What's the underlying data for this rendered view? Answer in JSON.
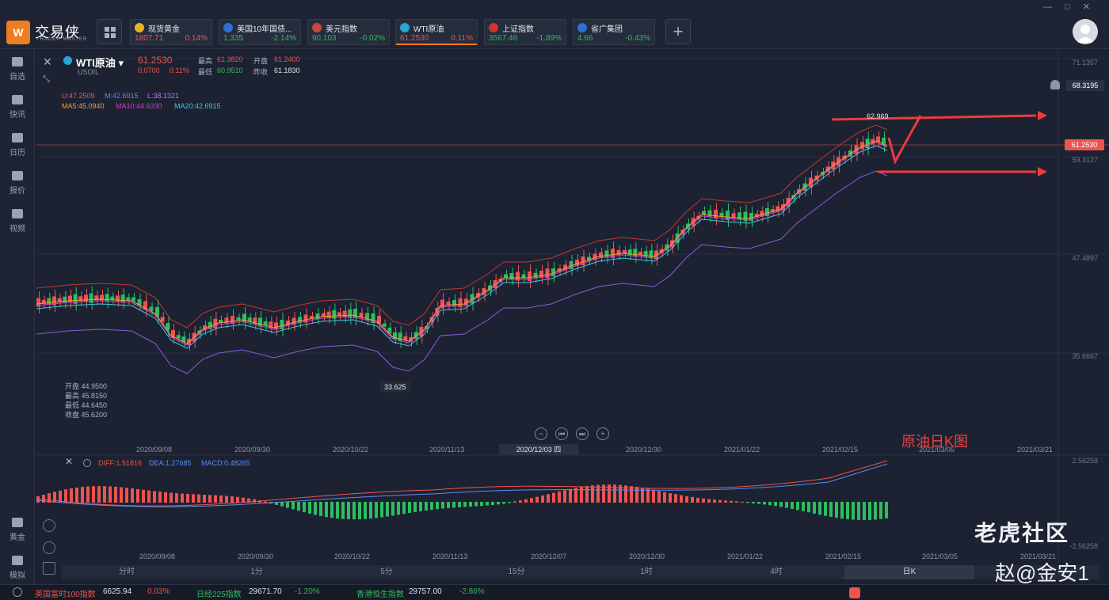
{
  "app": {
    "brand": "交易侠",
    "brand_sub": "TRADER MASTER",
    "logo": "W"
  },
  "quotes": [
    {
      "name": "现货黄金",
      "price": "1807.71",
      "change": "0.14%",
      "dir": "up",
      "icon_color": "#e8b428"
    },
    {
      "name": "美国10年国债...",
      "price": "1.335",
      "change": "-2.14%",
      "dir": "down",
      "icon_color": "#2f6fd6"
    },
    {
      "name": "美元指数",
      "price": "90.103",
      "change": "-0.02%",
      "dir": "down",
      "icon_color": "#c9463d"
    },
    {
      "name": "WTI原油",
      "price": "61.2530",
      "change": "0.11%",
      "dir": "up",
      "icon_color": "#2aa3d6"
    },
    {
      "name": "上证指数",
      "price": "3567.46",
      "change": "-1.89%",
      "dir": "down",
      "icon_color": "#d0342c"
    },
    {
      "name": "省广集团",
      "price": "4.66",
      "change": "-0.43%",
      "dir": "down",
      "icon_color": "#2f6fd6"
    }
  ],
  "sidebar": {
    "items": [
      "自选",
      "快讯",
      "日历",
      "报价",
      "视频",
      "黄金",
      "模拟"
    ]
  },
  "symbol": {
    "name": "WTI原油",
    "code": "USOIL",
    "price": "61.2530",
    "change_abs": "0.0700",
    "change_pct": "0.11%",
    "high_label": "最高",
    "high": "61.3820",
    "open_label": "开盘",
    "open": "61.2400",
    "low_label": "最低",
    "low": "60.9510",
    "prev_label": "昨收",
    "prev": "61.1830"
  },
  "indicators": {
    "boll": [
      "U:47.2509",
      "M:42.6915",
      "L:38.1321"
    ],
    "ma": [
      "MA5:45.0940",
      "MA10:44.6330",
      "MA20:42.6915"
    ],
    "macd": [
      "DIFF:1.51816",
      "DEA:1.27685",
      "MACD:0.48265"
    ]
  },
  "ohlc_box": [
    "开盘 44.9500",
    "最高 45.8150",
    "最低 44.6450",
    "收盘 45.6200"
  ],
  "y_axis": [
    "71.1357",
    "59.3127",
    "47.4897",
    "35.6667"
  ],
  "macd_y": [
    "2.56258",
    "-2.56258"
  ],
  "alert_price": "68.3195",
  "price_tag": "61.2530",
  "annotations": {
    "peak": "62.969",
    "trough": "33.625",
    "title": "原油日K图"
  },
  "x_axis": [
    "2020/09/08",
    "2020/09/30",
    "2020/10/22",
    "2020/11/13",
    "2020/12/30",
    "2021/01/22",
    "2021/02/15",
    "2021/03/05",
    "2021/03/21"
  ],
  "x_selected": "2020/12/03 四",
  "x_axis_macd": [
    "2020/09/08",
    "2020/09/30",
    "2020/10/22",
    "2020/11/13",
    "2020/12/07",
    "2020/12/30",
    "2021/01/22",
    "2021/02/15",
    "2021/03/05",
    "2021/03/21"
  ],
  "timeframes": [
    "分时",
    "1分",
    "5分",
    "15分",
    "1时",
    "4时",
    "日K"
  ],
  "status": [
    {
      "name": "英国富时100指数",
      "value": "6625.94",
      "change": "0.03%",
      "dir": "up"
    },
    {
      "name": "日经225指数",
      "value": "29671.70",
      "change": "-1.20%",
      "dir": "down"
    },
    {
      "name": "香港恒生指数",
      "value": "29757.00",
      "change": "-2.86%",
      "dir": "down"
    }
  ],
  "watermark": {
    "line1": "老虎社区",
    "line2": "赵@金安1"
  },
  "colors": {
    "up": "#ef5350",
    "down": "#2ebd5e",
    "accent": "#ef7d21"
  }
}
